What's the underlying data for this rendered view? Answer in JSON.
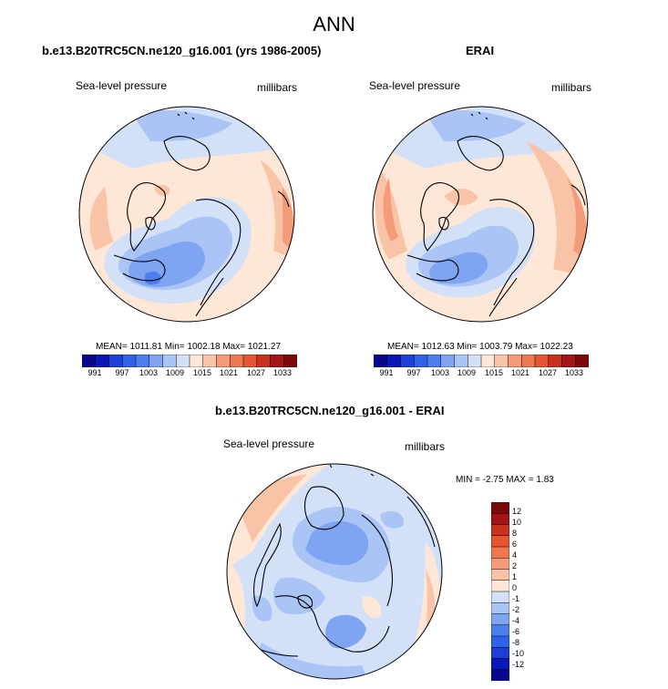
{
  "figure": {
    "title": "ANN",
    "colors": {
      "c991": "#08088c",
      "c994": "#0b18b8",
      "c997": "#1d3fd6",
      "c1000": "#2f62e8",
      "c1003": "#4b7ff0",
      "c1006": "#7ea4f2",
      "c1009": "#a9c4f5",
      "c1012": "#d2e1f8",
      "c1015": "#ffe7d8",
      "c1018": "#f9c3a8",
      "c1021": "#f49c79",
      "c1024": "#ef7750",
      "c1027": "#e75530",
      "c1030": "#c9311f",
      "c1033": "#a31514",
      "c1036": "#7a0a0a"
    }
  },
  "chart_data": [
    {
      "type": "heatmap",
      "panel": "model",
      "title": "b.e13.B20TRC5CN.ne120_g16.001 (yrs 1986-2005)",
      "variable_label": "Sea-level pressure",
      "units_label": "millibars",
      "stats": {
        "mean": 1011.81,
        "min": 1002.18,
        "max": 1021.27,
        "text": "MEAN= 1011.81  Min= 1002.18  Max= 1021.27"
      },
      "colorbar": {
        "levels": [
          991,
          994,
          997,
          1000,
          1003,
          1006,
          1009,
          1012,
          1015,
          1018,
          1021,
          1024,
          1027,
          1030,
          1033
        ],
        "tick_labels": [
          "991",
          "997",
          "1003",
          "1009",
          "1015",
          "1021",
          "1027",
          "1033"
        ]
      }
    },
    {
      "type": "heatmap",
      "panel": "obs",
      "title": "ERAI",
      "variable_label": "Sea-level pressure",
      "units_label": "millibars",
      "stats": {
        "mean": 1012.63,
        "min": 1003.79,
        "max": 1022.23,
        "text": "MEAN= 1012.63  Min= 1003.79  Max= 1022.23"
      },
      "colorbar": {
        "levels": [
          991,
          994,
          997,
          1000,
          1003,
          1006,
          1009,
          1012,
          1015,
          1018,
          1021,
          1024,
          1027,
          1030,
          1033
        ],
        "tick_labels": [
          "991",
          "997",
          "1003",
          "1009",
          "1015",
          "1021",
          "1027",
          "1033"
        ]
      }
    },
    {
      "type": "heatmap",
      "panel": "difference",
      "title": "b.e13.B20TRC5CN.ne120_g16.001 - ERAI",
      "variable_label": "Sea-level pressure",
      "units_label": "millibars",
      "stats": {
        "min": -2.75,
        "max": 1.83,
        "text": "MIN =  -2.75 MAX =   1.83"
      },
      "colorbar": {
        "levels": [
          -12,
          -10,
          -8,
          -6,
          -4,
          -2,
          -1,
          0,
          1,
          2,
          4,
          6,
          8,
          10,
          12
        ],
        "tick_labels": [
          "12",
          "10",
          "8",
          "6",
          "4",
          "2",
          "1",
          "0",
          "-1",
          "-2",
          "-4",
          "-6",
          "-8",
          "-10",
          "-12"
        ],
        "colors": [
          "#7a0a0a",
          "#a31514",
          "#c9311f",
          "#e75530",
          "#ef7750",
          "#f49c79",
          "#f9c3a8",
          "#ffe7d8",
          "#d2e1f8",
          "#a9c4f5",
          "#7ea4f2",
          "#4b7ff0",
          "#2f62e8",
          "#1d3fd6",
          "#0b18b8",
          "#08088c"
        ]
      }
    }
  ]
}
